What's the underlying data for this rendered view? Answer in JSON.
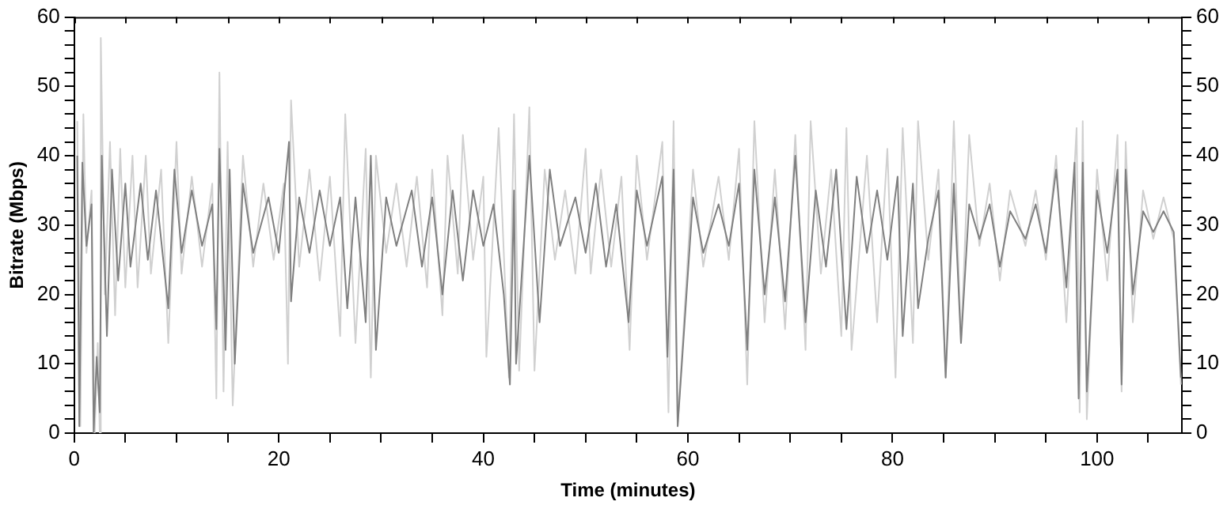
{
  "chart_data": {
    "type": "line",
    "xlabel": "Time (minutes)",
    "ylabel": "Bitrate (Mbps)",
    "xlim": [
      0,
      108.3
    ],
    "ylim": [
      0,
      60
    ],
    "y2lim": [
      0,
      60
    ],
    "xticks": [
      0,
      {
        "value": 5,
        "label": null
      },
      20,
      {
        "value": 10,
        "label": null
      },
      {
        "value": 15,
        "label": null
      },
      {
        "value": 25,
        "label": null
      },
      {
        "value": 30,
        "label": null
      },
      {
        "value": 35,
        "label": null
      },
      40,
      {
        "value": 45,
        "label": null
      },
      {
        "value": 50,
        "label": null
      },
      {
        "value": 55,
        "label": null
      },
      60,
      {
        "value": 65,
        "label": null
      },
      {
        "value": 70,
        "label": null
      },
      {
        "value": 75,
        "label": null
      },
      80,
      {
        "value": 85,
        "label": null
      },
      {
        "value": 90,
        "label": null
      },
      {
        "value": 95,
        "label": null
      },
      100,
      {
        "value": 105,
        "label": null
      }
    ],
    "yticks": [
      0,
      10,
      20,
      30,
      40,
      50,
      60,
      {
        "value": 2,
        "label": null
      },
      {
        "value": 4,
        "label": null
      },
      {
        "value": 6,
        "label": null
      },
      {
        "value": 8,
        "label": null
      },
      {
        "value": 12,
        "label": null
      },
      {
        "value": 14,
        "label": null
      },
      {
        "value": 16,
        "label": null
      },
      {
        "value": 18,
        "label": null
      },
      {
        "value": 22,
        "label": null
      },
      {
        "value": 24,
        "label": null
      },
      {
        "value": 26,
        "label": null
      },
      {
        "value": 28,
        "label": null
      },
      {
        "value": 32,
        "label": null
      },
      {
        "value": 34,
        "label": null
      },
      {
        "value": 36,
        "label": null
      },
      {
        "value": 38,
        "label": null
      },
      {
        "value": 42,
        "label": null
      },
      {
        "value": 44,
        "label": null
      },
      {
        "value": 46,
        "label": null
      },
      {
        "value": 48,
        "label": null
      },
      {
        "value": 52,
        "label": null
      },
      {
        "value": 54,
        "label": null
      },
      {
        "value": 56,
        "label": null
      },
      {
        "value": 58,
        "label": null
      }
    ],
    "y2ticks": [
      0,
      10,
      20,
      30,
      40,
      50,
      60,
      {
        "value": 2,
        "label": null
      },
      {
        "value": 4,
        "label": null
      },
      {
        "value": 6,
        "label": null
      },
      {
        "value": 8,
        "label": null
      },
      {
        "value": 12,
        "label": null
      },
      {
        "value": 14,
        "label": null
      },
      {
        "value": 16,
        "label": null
      },
      {
        "value": 18,
        "label": null
      },
      {
        "value": 22,
        "label": null
      },
      {
        "value": 24,
        "label": null
      },
      {
        "value": 26,
        "label": null
      },
      {
        "value": 28,
        "label": null
      },
      {
        "value": 32,
        "label": null
      },
      {
        "value": 34,
        "label": null
      },
      {
        "value": 36,
        "label": null
      },
      {
        "value": 38,
        "label": null
      },
      {
        "value": 42,
        "label": null
      },
      {
        "value": 44,
        "label": null
      },
      {
        "value": 46,
        "label": null
      },
      {
        "value": 48,
        "label": null
      },
      {
        "value": 52,
        "label": null
      },
      {
        "value": 54,
        "label": null
      },
      {
        "value": 56,
        "label": null
      },
      {
        "value": 58,
        "label": null
      }
    ],
    "grid": false,
    "legend": false,
    "marker": "none",
    "line_style": "solid",
    "series": [
      {
        "color": "#d0d0d0",
        "x": [
          0.3,
          0.6,
          0.9,
          1.2,
          1.7,
          2.0,
          2.3,
          2.5,
          2.6,
          3.0,
          3.5,
          4.0,
          4.5,
          5.0,
          5.7,
          6.2,
          7.0,
          7.5,
          8.5,
          9.2,
          10.0,
          10.5,
          11.5,
          12.5,
          13.5,
          13.9,
          14.2,
          14.6,
          15.0,
          15.5,
          16.5,
          17.5,
          18.5,
          19.5,
          20.5,
          20.9,
          21.2,
          22,
          23,
          24,
          25,
          26,
          26.5,
          27.5,
          28.5,
          29,
          29.5,
          30.5,
          31.5,
          32.5,
          33.5,
          34.5,
          35,
          36,
          36.5,
          37.5,
          38,
          39,
          40,
          40.3,
          41.5,
          42.5,
          43,
          43.5,
          44.5,
          45,
          46,
          47,
          48,
          49,
          50,
          50.5,
          51.5,
          52.5,
          53.5,
          54.3,
          55,
          56,
          57.5,
          58.1,
          58.6,
          59,
          60.5,
          61.5,
          63,
          64,
          65,
          65.8,
          66.5,
          67.5,
          68.5,
          69.5,
          70.5,
          71.5,
          72,
          73,
          74,
          75,
          75.5,
          76,
          77.5,
          78.5,
          79.5,
          80.3,
          81,
          82,
          82.5,
          83.5,
          84.5,
          85.2,
          86,
          86.7,
          87.5,
          88.5,
          89.5,
          90.5,
          91.5,
          93,
          94,
          95,
          96,
          97,
          98,
          98.3,
          98.6,
          99,
          100,
          101,
          102,
          102.4,
          102.8,
          103.5,
          104.5,
          105.5,
          106.5,
          107.5,
          108.2
        ],
        "values": [
          45,
          1,
          46,
          26,
          35,
          0,
          13,
          0,
          57,
          20,
          42,
          17,
          41,
          21,
          40,
          21,
          40,
          23,
          38,
          13,
          42,
          23,
          37,
          24,
          36,
          5,
          52,
          6,
          42,
          4,
          40,
          24,
          36,
          25,
          36,
          10,
          48,
          24,
          38,
          22,
          37,
          14,
          46,
          13,
          41,
          8,
          40,
          26,
          36,
          24,
          37,
          21,
          38,
          17,
          40,
          23,
          43,
          25,
          37,
          11,
          44,
          8,
          46,
          9,
          47,
          9,
          38,
          25,
          35,
          23,
          41,
          23,
          38,
          24,
          37,
          12,
          40,
          25,
          42,
          3,
          45,
          1,
          38,
          24,
          37,
          25,
          41,
          7,
          45,
          16,
          38,
          15,
          43,
          12,
          45,
          23,
          38,
          14,
          44,
          12,
          40,
          16,
          41,
          8,
          44,
          13,
          45,
          25,
          38,
          8,
          45,
          13,
          43,
          27,
          36,
          22,
          35,
          27,
          35,
          25,
          40,
          16,
          44,
          3,
          45,
          2,
          38,
          22,
          43,
          6,
          42,
          16,
          35,
          28,
          34,
          28,
          7
        ]
      },
      {
        "color": "#808080",
        "x": [
          0.3,
          0.5,
          0.8,
          1.2,
          1.7,
          1.9,
          2.2,
          2.5,
          2.7,
          3.2,
          3.7,
          4.3,
          5,
          5.5,
          6.5,
          7.2,
          8,
          9.2,
          9.8,
          10.5,
          11.5,
          12.5,
          13.5,
          13.9,
          14.2,
          14.8,
          15.2,
          15.7,
          16.5,
          17.5,
          19,
          20,
          21,
          21.2,
          22,
          23,
          24,
          25,
          26,
          26.7,
          27.5,
          28.5,
          29,
          29.5,
          30.5,
          31.5,
          33,
          34,
          35,
          36,
          37,
          38,
          39,
          40,
          41,
          42,
          42.6,
          43,
          43.2,
          44.5,
          45.5,
          46.5,
          47.5,
          49,
          50,
          51,
          52,
          53,
          54.2,
          55,
          56,
          57.5,
          58,
          58.6,
          59,
          60.5,
          61.5,
          63,
          64,
          65,
          65.8,
          66.5,
          67.5,
          68.5,
          69.5,
          70.5,
          71.5,
          72.5,
          73.5,
          74.5,
          75.5,
          76.5,
          77.5,
          78.5,
          79.5,
          80.5,
          81,
          82,
          82.5,
          83.5,
          84.5,
          85.2,
          86,
          86.7,
          87.5,
          88.5,
          89.5,
          90.5,
          91.5,
          93,
          94,
          95,
          96,
          97,
          97.8,
          98.2,
          98.6,
          99,
          100,
          101,
          102,
          102.4,
          102.8,
          103.5,
          104.5,
          105.5,
          106.5,
          107.5,
          108.2
        ],
        "values": [
          40,
          1,
          39,
          27,
          33,
          0,
          11,
          3,
          40,
          14,
          38,
          22,
          36,
          24,
          36,
          25,
          35,
          18,
          38,
          26,
          35,
          27,
          33,
          15,
          41,
          12,
          38,
          10,
          36,
          26,
          34,
          26,
          42,
          19,
          34,
          26,
          35,
          27,
          34,
          18,
          34,
          16,
          40,
          12,
          34,
          27,
          35,
          24,
          34,
          20,
          35,
          22,
          35,
          27,
          33,
          20,
          7,
          35,
          10,
          40,
          16,
          38,
          27,
          34,
          26,
          36,
          24,
          33,
          16,
          35,
          27,
          37,
          11,
          38,
          1,
          34,
          26,
          33,
          27,
          36,
          12,
          38,
          20,
          34,
          19,
          40,
          16,
          35,
          24,
          38,
          15,
          37,
          26,
          35,
          25,
          37,
          14,
          36,
          18,
          28,
          35,
          8,
          36,
          13,
          33,
          28,
          33,
          24,
          32,
          28,
          33,
          26,
          38,
          21,
          39,
          5,
          39,
          6,
          35,
          26,
          38,
          7,
          38,
          20,
          32,
          29,
          32,
          29,
          8
        ]
      }
    ]
  }
}
